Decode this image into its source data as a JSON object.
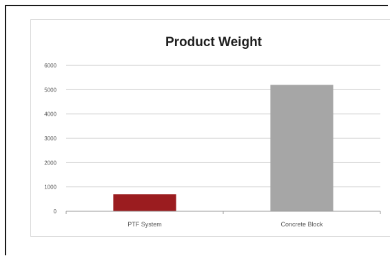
{
  "chart_data": {
    "type": "bar",
    "title": "Product Weight",
    "xlabel": "",
    "ylabel": "",
    "categories": [
      "PTF System",
      "Concrete Block"
    ],
    "values": [
      700,
      5200
    ],
    "ylim": [
      0,
      6000
    ],
    "yticks": [
      {
        "value": 0,
        "label": "0"
      },
      {
        "value": 1000,
        "label": "1000"
      },
      {
        "value": 2000,
        "label": "2000"
      },
      {
        "value": 3000,
        "label": "3000"
      },
      {
        "value": 4000,
        "label": "4000"
      },
      {
        "value": 5000,
        "label": "5000"
      },
      {
        "value": 6000,
        "label": "6000"
      }
    ],
    "bar_colors": [
      "#9b1c1f",
      "#a6a6a6"
    ],
    "gridlines": true,
    "legend": "none"
  }
}
